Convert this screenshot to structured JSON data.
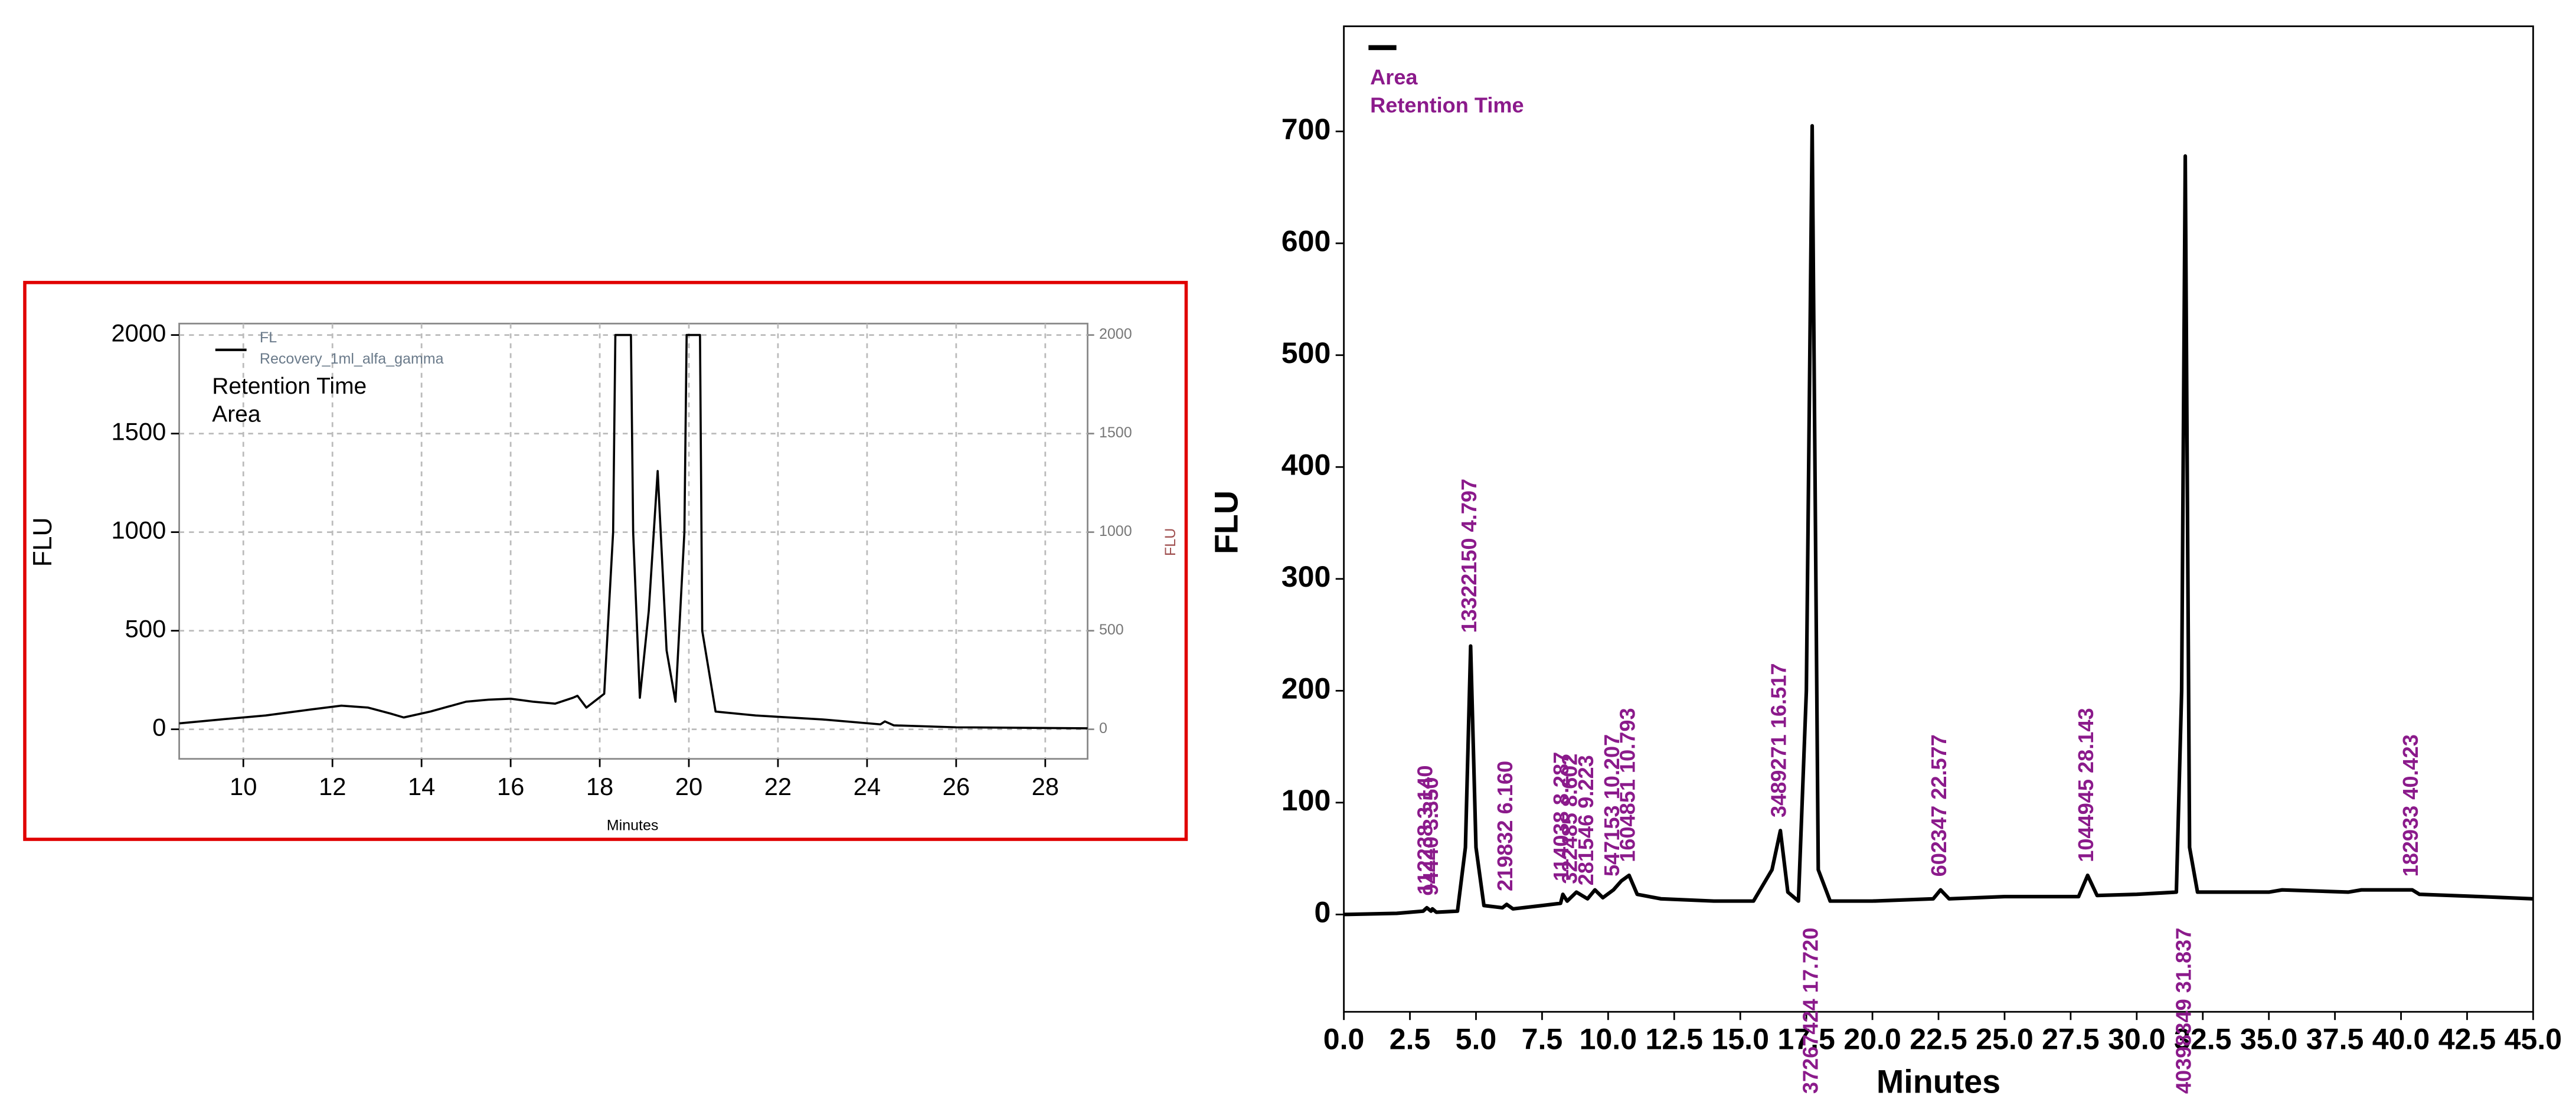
{
  "chart_data": [
    {
      "type": "line",
      "series": [
        {
          "name": "FL",
          "color": "#000000",
          "x": [
            8.56,
            9.5,
            10.5,
            11.5,
            12.2,
            12.8,
            13.3,
            13.6,
            14.2,
            15,
            15.5,
            16,
            16.5,
            17,
            17.4,
            17.5,
            17.7,
            18.1,
            18.3,
            18.35,
            18.7,
            18.75,
            18.9,
            19.1,
            19.3,
            19.5,
            19.7,
            19.9,
            19.95,
            20.25,
            20.3,
            20.6,
            21.5,
            23,
            24.3,
            24.4,
            24.6,
            26,
            28.95
          ],
          "values": [
            30,
            50,
            70,
            100,
            120,
            110,
            80,
            60,
            90,
            140,
            150,
            155,
            140,
            130,
            160,
            170,
            110,
            180,
            1000,
            2000,
            2000,
            1000,
            160,
            600,
            1310,
            400,
            140,
            1000,
            2000,
            2000,
            500,
            90,
            70,
            50,
            25,
            40,
            20,
            10,
            5
          ]
        }
      ],
      "legend_detail": "Recovery_1ml_alfa_gamma",
      "legend_labels": [
        "Retention Time",
        "Area"
      ],
      "xlabel": "Minutes",
      "ylabel": "FLU",
      "y2label": "FLU",
      "xlim": [
        8.56,
        28.95
      ],
      "xticks": [
        10,
        12,
        14,
        16,
        18,
        20,
        22,
        24,
        26,
        28
      ],
      "ylim": [
        -150,
        2058
      ],
      "yticks": [
        0,
        500,
        1000,
        1500,
        2000
      ],
      "y2lim": [
        -150,
        2058
      ],
      "y2ticks": [
        0,
        500,
        1000,
        1500,
        2000
      ],
      "grid": true
    },
    {
      "type": "line",
      "series": [
        {
          "color": "#000000",
          "x": [
            0,
            2,
            3,
            3.14,
            3.3,
            3.35,
            3.5,
            4.3,
            4.6,
            4.797,
            5.0,
            5.3,
            6,
            6.16,
            6.4,
            7.5,
            8.2,
            8.287,
            8.45,
            8.8,
            9.22,
            9.5,
            9.8,
            10.2,
            10.5,
            10.793,
            11.1,
            12,
            14,
            15.5,
            16.2,
            16.517,
            16.8,
            17.2,
            17.5,
            17.72,
            17.95,
            18.4,
            20,
            22.3,
            22.577,
            22.9,
            25,
            27.8,
            28.143,
            28.5,
            30,
            31.5,
            31.7,
            31.837,
            32,
            32.3,
            35,
            35.5,
            38,
            38.5,
            40.423,
            40.7,
            43,
            45
          ],
          "values": [
            0,
            1,
            3,
            6,
            3,
            5,
            2,
            3,
            60,
            240,
            60,
            8,
            6,
            9,
            5,
            8,
            10,
            18,
            12,
            20,
            14,
            22,
            15,
            22,
            30,
            35,
            18,
            14,
            12,
            12,
            40,
            75,
            20,
            12,
            200,
            705,
            40,
            12,
            12,
            14,
            22,
            14,
            16,
            16,
            35,
            17,
            18,
            20,
            200,
            678,
            60,
            20,
            20,
            22,
            20,
            22,
            22,
            18,
            16,
            14
          ]
        }
      ],
      "legend_labels": [
        "Area",
        "Retention Time"
      ],
      "annotations": [
        {
          "text": "112238  3.140",
          "x": 3.14
        },
        {
          "text": "94440  3.350",
          "x": 3.35
        },
        {
          "text": "13322150  4.797",
          "x": 4.797
        },
        {
          "text": "219832  6.160",
          "x": 6.16
        },
        {
          "text": "114038  8.287",
          "x": 8.287
        },
        {
          "text": "322485  8.602",
          "x": 8.602
        },
        {
          "text": "281546  9.223",
          "x": 9.223
        },
        {
          "text": "547153  10.207",
          "x": 10.207
        },
        {
          "text": "1604851  10.793",
          "x": 10.793
        },
        {
          "text": "3489271  16.517",
          "x": 16.517
        },
        {
          "text": "37267424  17.720",
          "x": 17.72
        },
        {
          "text": "602347  22.577",
          "x": 22.577
        },
        {
          "text": "1044945  28.143",
          "x": 28.143
        },
        {
          "text": "40398349  31.837",
          "x": 31.837
        },
        {
          "text": "182933  40.423",
          "x": 40.423
        }
      ],
      "annotation_color": "#8b1a8b",
      "xlabel": "Minutes",
      "ylabel": "FLU",
      "xlim": [
        0,
        45
      ],
      "xticks": [
        {
          "value": 0,
          "label": "0.0"
        },
        2.5,
        {
          "value": 5,
          "label": "5.0"
        },
        7.5,
        {
          "value": 10,
          "label": "10.0"
        },
        12.5,
        {
          "value": 15,
          "label": "15.0"
        },
        17.5,
        {
          "value": 20,
          "label": "20.0"
        },
        22.5,
        {
          "value": 25,
          "label": "25.0"
        },
        27.5,
        {
          "value": 30,
          "label": "30.0"
        },
        32.5,
        {
          "value": 35,
          "label": "35.0"
        },
        37.5,
        {
          "value": 40,
          "label": "40.0"
        },
        42.5,
        {
          "value": 45,
          "label": "45.0"
        }
      ],
      "ylim": [
        -87,
        794
      ],
      "yticks": [
        0,
        100,
        200,
        300,
        400,
        500,
        600,
        700
      ],
      "grid": false
    }
  ]
}
